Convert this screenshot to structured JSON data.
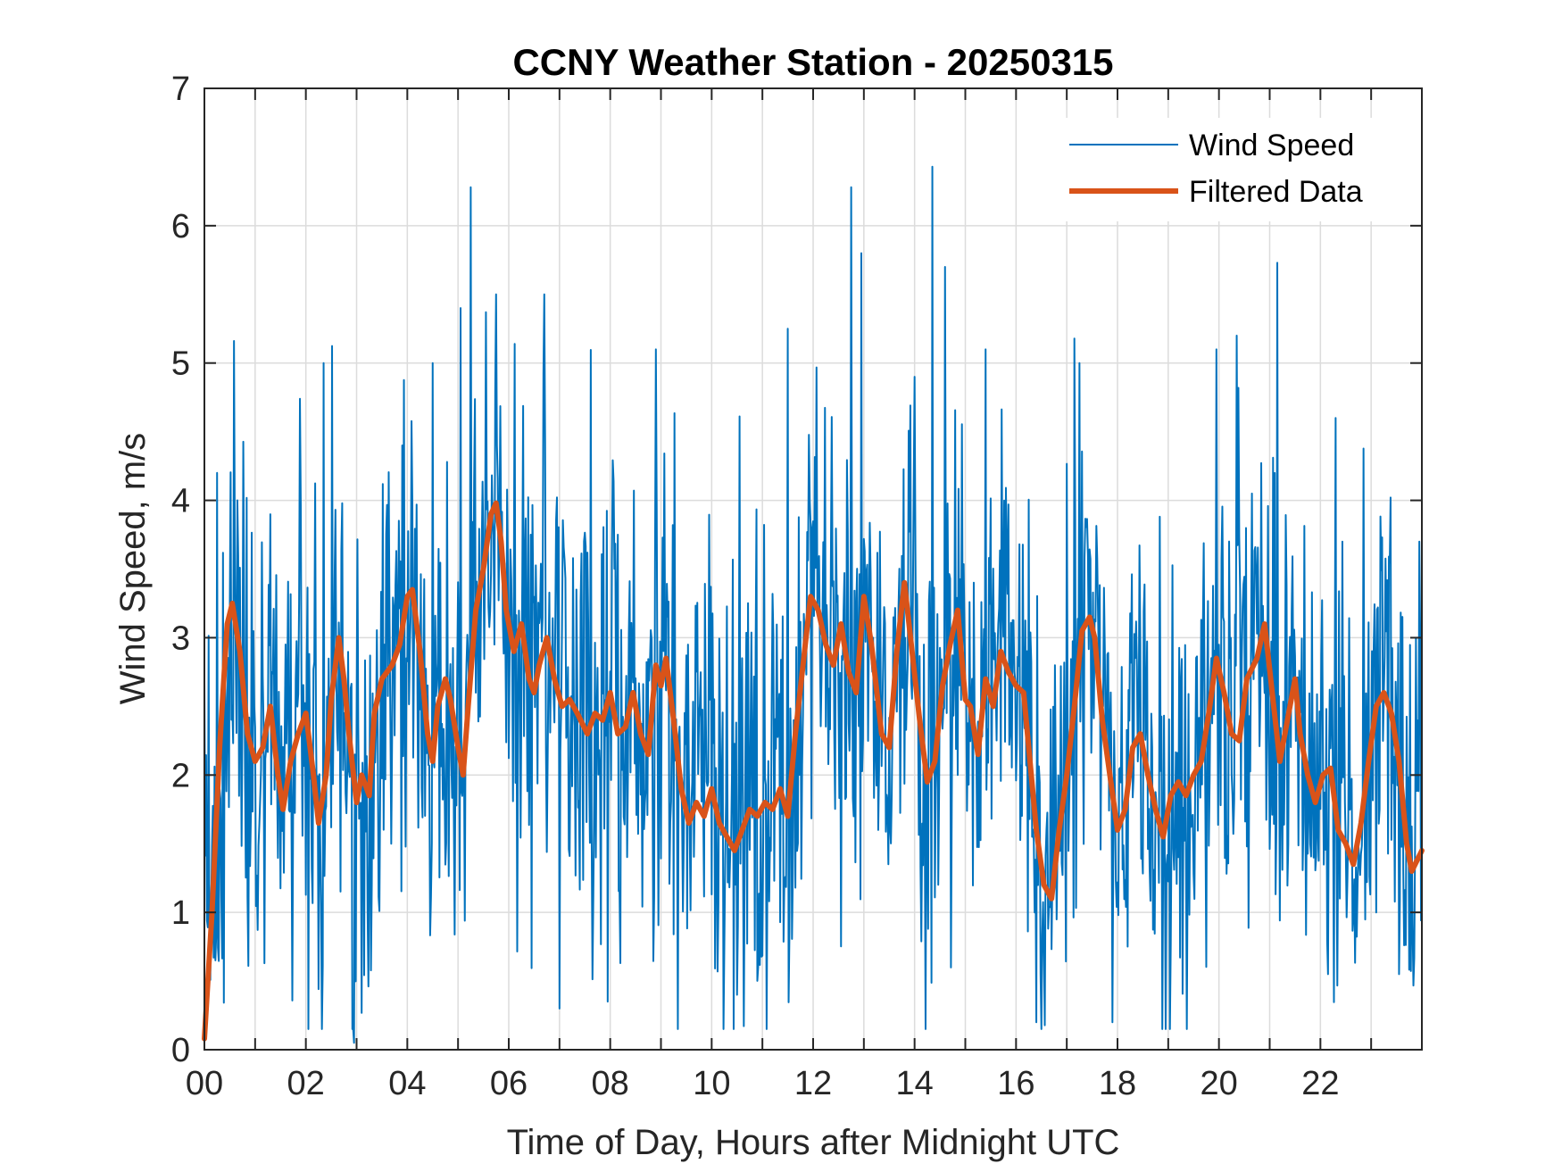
{
  "chart_data": {
    "type": "line",
    "title": "CCNY Weather Station - 20250315",
    "xlabel": "Time of Day, Hours after Midnight UTC",
    "ylabel": "Wind Speed, m/s",
    "xlim": [
      0,
      24
    ],
    "ylim": [
      0,
      7
    ],
    "x_ticks": [
      0,
      2,
      4,
      6,
      8,
      10,
      12,
      14,
      16,
      18,
      20,
      22
    ],
    "x_tick_labels": [
      "00",
      "02",
      "04",
      "06",
      "08",
      "10",
      "12",
      "14",
      "16",
      "18",
      "20",
      "22"
    ],
    "y_ticks": [
      0,
      1,
      2,
      3,
      4,
      5,
      6,
      7
    ],
    "y_tick_labels": [
      "0",
      "1",
      "2",
      "3",
      "4",
      "5",
      "6",
      "7"
    ],
    "grid": true,
    "legend_position": "top-right",
    "series": [
      {
        "name": "Wind Speed",
        "color": "#0072BD",
        "note": "raw 1-minute samples, fluctuating around filtered mean",
        "anchor_points": [
          [
            0.25,
            4.2
          ],
          [
            2.35,
            5.0
          ],
          [
            2.95,
            0.05
          ],
          [
            3.9,
            4.4
          ],
          [
            4.5,
            5.0
          ],
          [
            5.05,
            5.4
          ],
          [
            5.25,
            6.28
          ],
          [
            5.75,
            5.5
          ],
          [
            6.7,
            5.5
          ],
          [
            7.0,
            0.3
          ],
          [
            7.95,
            0.35
          ],
          [
            8.9,
            5.1
          ],
          [
            10.5,
            0.4
          ],
          [
            11.5,
            5.25
          ],
          [
            12.75,
            6.28
          ],
          [
            12.95,
            5.8
          ],
          [
            14.0,
            4.9
          ],
          [
            14.35,
            6.43
          ],
          [
            14.6,
            5.7
          ],
          [
            15.4,
            5.1
          ],
          [
            16.4,
            0.2
          ],
          [
            17.25,
            5.0
          ],
          [
            17.9,
            0.2
          ],
          [
            19.95,
            5.1
          ],
          [
            20.35,
            5.2
          ],
          [
            21.15,
            5.73
          ],
          [
            22.15,
            0.55
          ],
          [
            22.3,
            4.6
          ],
          [
            23.55,
            0.55
          ],
          [
            23.95,
            3.7
          ]
        ]
      },
      {
        "name": "Filtered Data",
        "color": "#D95319",
        "points": [
          [
            0.0,
            0.08
          ],
          [
            0.15,
            1.0
          ],
          [
            0.3,
            2.2
          ],
          [
            0.45,
            3.1
          ],
          [
            0.55,
            3.25
          ],
          [
            0.7,
            2.9
          ],
          [
            0.85,
            2.3
          ],
          [
            1.0,
            2.1
          ],
          [
            1.15,
            2.2
          ],
          [
            1.3,
            2.5
          ],
          [
            1.45,
            2.0
          ],
          [
            1.55,
            1.75
          ],
          [
            1.7,
            2.1
          ],
          [
            1.85,
            2.3
          ],
          [
            2.0,
            2.45
          ],
          [
            2.15,
            2.0
          ],
          [
            2.25,
            1.65
          ],
          [
            2.4,
            2.0
          ],
          [
            2.5,
            2.55
          ],
          [
            2.65,
            3.0
          ],
          [
            2.75,
            2.7
          ],
          [
            2.85,
            2.3
          ],
          [
            3.0,
            1.8
          ],
          [
            3.1,
            2.0
          ],
          [
            3.25,
            1.85
          ],
          [
            3.35,
            2.45
          ],
          [
            3.5,
            2.7
          ],
          [
            3.7,
            2.8
          ],
          [
            3.85,
            2.95
          ],
          [
            4.0,
            3.3
          ],
          [
            4.1,
            3.35
          ],
          [
            4.25,
            2.9
          ],
          [
            4.4,
            2.3
          ],
          [
            4.5,
            2.1
          ],
          [
            4.6,
            2.5
          ],
          [
            4.75,
            2.7
          ],
          [
            4.85,
            2.55
          ],
          [
            5.0,
            2.2
          ],
          [
            5.1,
            2.0
          ],
          [
            5.2,
            2.5
          ],
          [
            5.35,
            3.2
          ],
          [
            5.5,
            3.5
          ],
          [
            5.65,
            3.9
          ],
          [
            5.75,
            3.98
          ],
          [
            5.85,
            3.7
          ],
          [
            5.95,
            3.2
          ],
          [
            6.1,
            2.9
          ],
          [
            6.25,
            3.1
          ],
          [
            6.4,
            2.7
          ],
          [
            6.5,
            2.6
          ],
          [
            6.6,
            2.8
          ],
          [
            6.75,
            3.0
          ],
          [
            6.9,
            2.7
          ],
          [
            7.05,
            2.5
          ],
          [
            7.2,
            2.55
          ],
          [
            7.35,
            2.45
          ],
          [
            7.55,
            2.3
          ],
          [
            7.7,
            2.45
          ],
          [
            7.85,
            2.4
          ],
          [
            8.0,
            2.6
          ],
          [
            8.15,
            2.3
          ],
          [
            8.3,
            2.35
          ],
          [
            8.45,
            2.6
          ],
          [
            8.6,
            2.3
          ],
          [
            8.75,
            2.15
          ],
          [
            8.9,
            2.8
          ],
          [
            9.0,
            2.65
          ],
          [
            9.1,
            2.85
          ],
          [
            9.25,
            2.4
          ],
          [
            9.4,
            1.9
          ],
          [
            9.55,
            1.65
          ],
          [
            9.7,
            1.8
          ],
          [
            9.85,
            1.7
          ],
          [
            10.0,
            1.9
          ],
          [
            10.15,
            1.65
          ],
          [
            10.3,
            1.55
          ],
          [
            10.45,
            1.45
          ],
          [
            10.6,
            1.6
          ],
          [
            10.75,
            1.75
          ],
          [
            10.9,
            1.7
          ],
          [
            11.05,
            1.8
          ],
          [
            11.2,
            1.75
          ],
          [
            11.35,
            1.9
          ],
          [
            11.5,
            1.7
          ],
          [
            11.65,
            2.3
          ],
          [
            11.8,
            2.8
          ],
          [
            11.95,
            3.3
          ],
          [
            12.1,
            3.2
          ],
          [
            12.25,
            2.95
          ],
          [
            12.4,
            2.8
          ],
          [
            12.55,
            3.1
          ],
          [
            12.7,
            2.75
          ],
          [
            12.85,
            2.6
          ],
          [
            13.0,
            3.3
          ],
          [
            13.15,
            2.95
          ],
          [
            13.35,
            2.3
          ],
          [
            13.5,
            2.2
          ],
          [
            13.65,
            2.9
          ],
          [
            13.8,
            3.4
          ],
          [
            13.95,
            2.9
          ],
          [
            14.1,
            2.4
          ],
          [
            14.25,
            1.95
          ],
          [
            14.4,
            2.1
          ],
          [
            14.55,
            2.65
          ],
          [
            14.7,
            2.95
          ],
          [
            14.85,
            3.2
          ],
          [
            15.0,
            2.55
          ],
          [
            15.1,
            2.5
          ],
          [
            15.25,
            2.15
          ],
          [
            15.4,
            2.7
          ],
          [
            15.55,
            2.5
          ],
          [
            15.7,
            2.9
          ],
          [
            15.85,
            2.75
          ],
          [
            16.0,
            2.65
          ],
          [
            16.15,
            2.6
          ],
          [
            16.25,
            2.2
          ],
          [
            16.4,
            1.6
          ],
          [
            16.55,
            1.2
          ],
          [
            16.7,
            1.1
          ],
          [
            16.85,
            1.6
          ],
          [
            17.0,
            2.0
          ],
          [
            17.15,
            2.5
          ],
          [
            17.3,
            3.05
          ],
          [
            17.45,
            3.15
          ],
          [
            17.55,
            3.0
          ],
          [
            17.7,
            2.4
          ],
          [
            17.85,
            2.0
          ],
          [
            18.0,
            1.6
          ],
          [
            18.15,
            1.75
          ],
          [
            18.3,
            2.2
          ],
          [
            18.45,
            2.3
          ],
          [
            18.6,
            2.0
          ],
          [
            18.75,
            1.75
          ],
          [
            18.9,
            1.55
          ],
          [
            19.05,
            1.85
          ],
          [
            19.2,
            1.95
          ],
          [
            19.35,
            1.85
          ],
          [
            19.5,
            2.0
          ],
          [
            19.65,
            2.1
          ],
          [
            19.8,
            2.45
          ],
          [
            19.95,
            2.85
          ],
          [
            20.1,
            2.6
          ],
          [
            20.25,
            2.3
          ],
          [
            20.4,
            2.25
          ],
          [
            20.55,
            2.7
          ],
          [
            20.75,
            2.85
          ],
          [
            20.9,
            3.1
          ],
          [
            21.05,
            2.6
          ],
          [
            21.2,
            2.1
          ],
          [
            21.35,
            2.4
          ],
          [
            21.5,
            2.7
          ],
          [
            21.6,
            2.3
          ],
          [
            21.75,
            2.0
          ],
          [
            21.9,
            1.8
          ],
          [
            22.05,
            2.0
          ],
          [
            22.2,
            2.05
          ],
          [
            22.35,
            1.6
          ],
          [
            22.5,
            1.5
          ],
          [
            22.65,
            1.35
          ],
          [
            22.8,
            1.65
          ],
          [
            22.95,
            2.1
          ],
          [
            23.1,
            2.5
          ],
          [
            23.25,
            2.6
          ],
          [
            23.4,
            2.45
          ],
          [
            23.55,
            2.1
          ],
          [
            23.7,
            1.5
          ],
          [
            23.8,
            1.3
          ],
          [
            24.0,
            1.45
          ]
        ]
      }
    ]
  }
}
